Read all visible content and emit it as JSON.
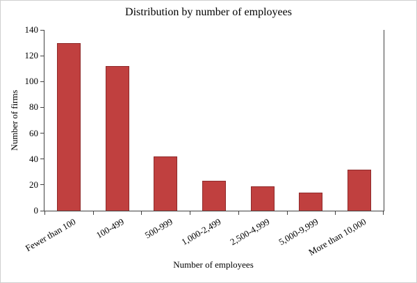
{
  "chart_data": {
    "type": "bar",
    "title": "Distribution by number of employees",
    "xlabel": "Number of employees",
    "ylabel": "Number of firms",
    "categories": [
      "Fewer than 100",
      "100-499",
      "500-999",
      "1,000-2,499",
      "2,500-4,999",
      "5,000-9,999",
      "More than 10,000"
    ],
    "values": [
      130,
      112,
      42,
      23,
      19,
      14,
      32
    ],
    "ylim": [
      0,
      140
    ],
    "ytick_step": 20,
    "yticks": [
      0,
      20,
      40,
      60,
      80,
      100,
      120,
      140
    ],
    "grid": false,
    "legend": "none",
    "bar_color": "#c0403f",
    "bar_border_color": "#8e2a2a",
    "axis_color": "#404040"
  }
}
